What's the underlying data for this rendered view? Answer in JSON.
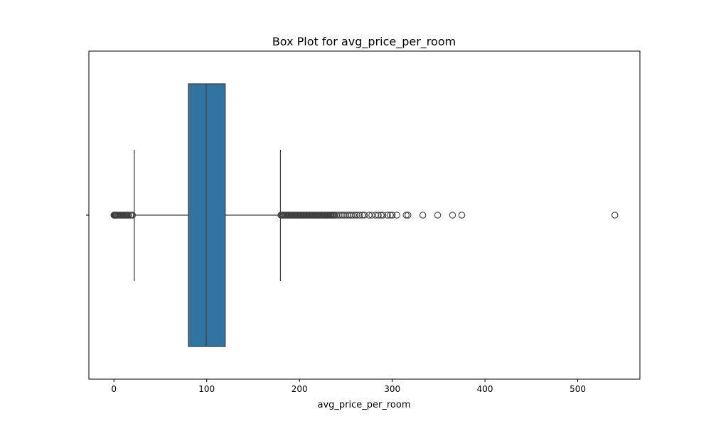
{
  "chart_data": {
    "type": "boxplot",
    "title": "Box Plot for avg_price_per_room",
    "xlabel": "avg_price_per_room",
    "ylabel": "",
    "orientation": "horizontal",
    "xlim": [
      -27,
      567
    ],
    "xticks": [
      0,
      100,
      200,
      300,
      400,
      500
    ],
    "box": {
      "q1": 80.3,
      "median": 99.45,
      "q3": 120.0,
      "whisker_low": 22.0,
      "whisker_high": 179.5
    },
    "outliers": [
      0,
      0.5,
      1,
      1.5,
      2,
      2.5,
      3,
      4,
      5,
      6,
      7,
      8,
      9,
      10,
      11,
      12,
      13,
      14,
      15,
      16,
      18,
      19,
      20,
      180,
      181,
      182,
      183,
      184,
      185,
      186,
      187,
      188,
      189,
      190,
      191,
      192,
      193,
      194,
      195,
      196,
      197,
      198,
      199,
      200,
      201,
      202,
      203,
      204,
      205,
      206,
      207,
      208,
      209,
      210,
      211,
      212,
      213,
      214,
      215,
      216,
      217,
      218,
      219,
      220,
      221,
      222,
      223,
      224,
      225,
      226,
      227,
      228,
      229,
      230,
      231,
      232,
      233,
      234,
      235,
      236,
      237,
      238,
      240,
      242,
      244,
      246,
      248,
      250,
      252,
      254,
      256,
      258,
      260,
      262,
      265,
      268,
      270,
      275,
      278,
      282,
      285,
      288,
      290,
      295,
      298,
      300,
      305,
      315,
      317,
      333,
      349,
      365,
      375,
      540
    ],
    "colors": {
      "box_fill": "#3274a1",
      "line": "#3d3d3d"
    },
    "grid": false
  }
}
